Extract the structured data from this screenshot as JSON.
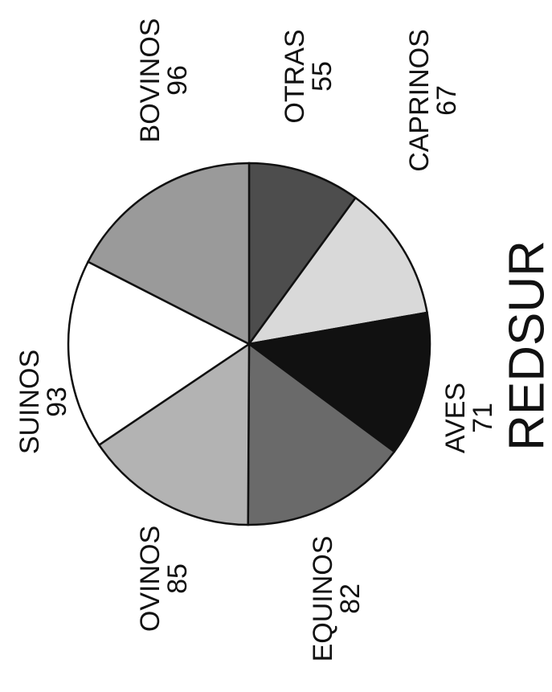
{
  "chart_data": {
    "type": "pie",
    "title": "REDSUR",
    "categories": [
      "OTRAS",
      "CAPRINOS",
      "AVES",
      "EQUINOS",
      "OVINOS",
      "SUINOS",
      "BOVINOS"
    ],
    "values": [
      55,
      67,
      71,
      82,
      85,
      93,
      96
    ],
    "colors": [
      "#4d4d4d",
      "#d9d9d9",
      "#111111",
      "#6a6a6a",
      "#b3b3b3",
      "#ffffff",
      "#9a9a9a"
    ]
  }
}
